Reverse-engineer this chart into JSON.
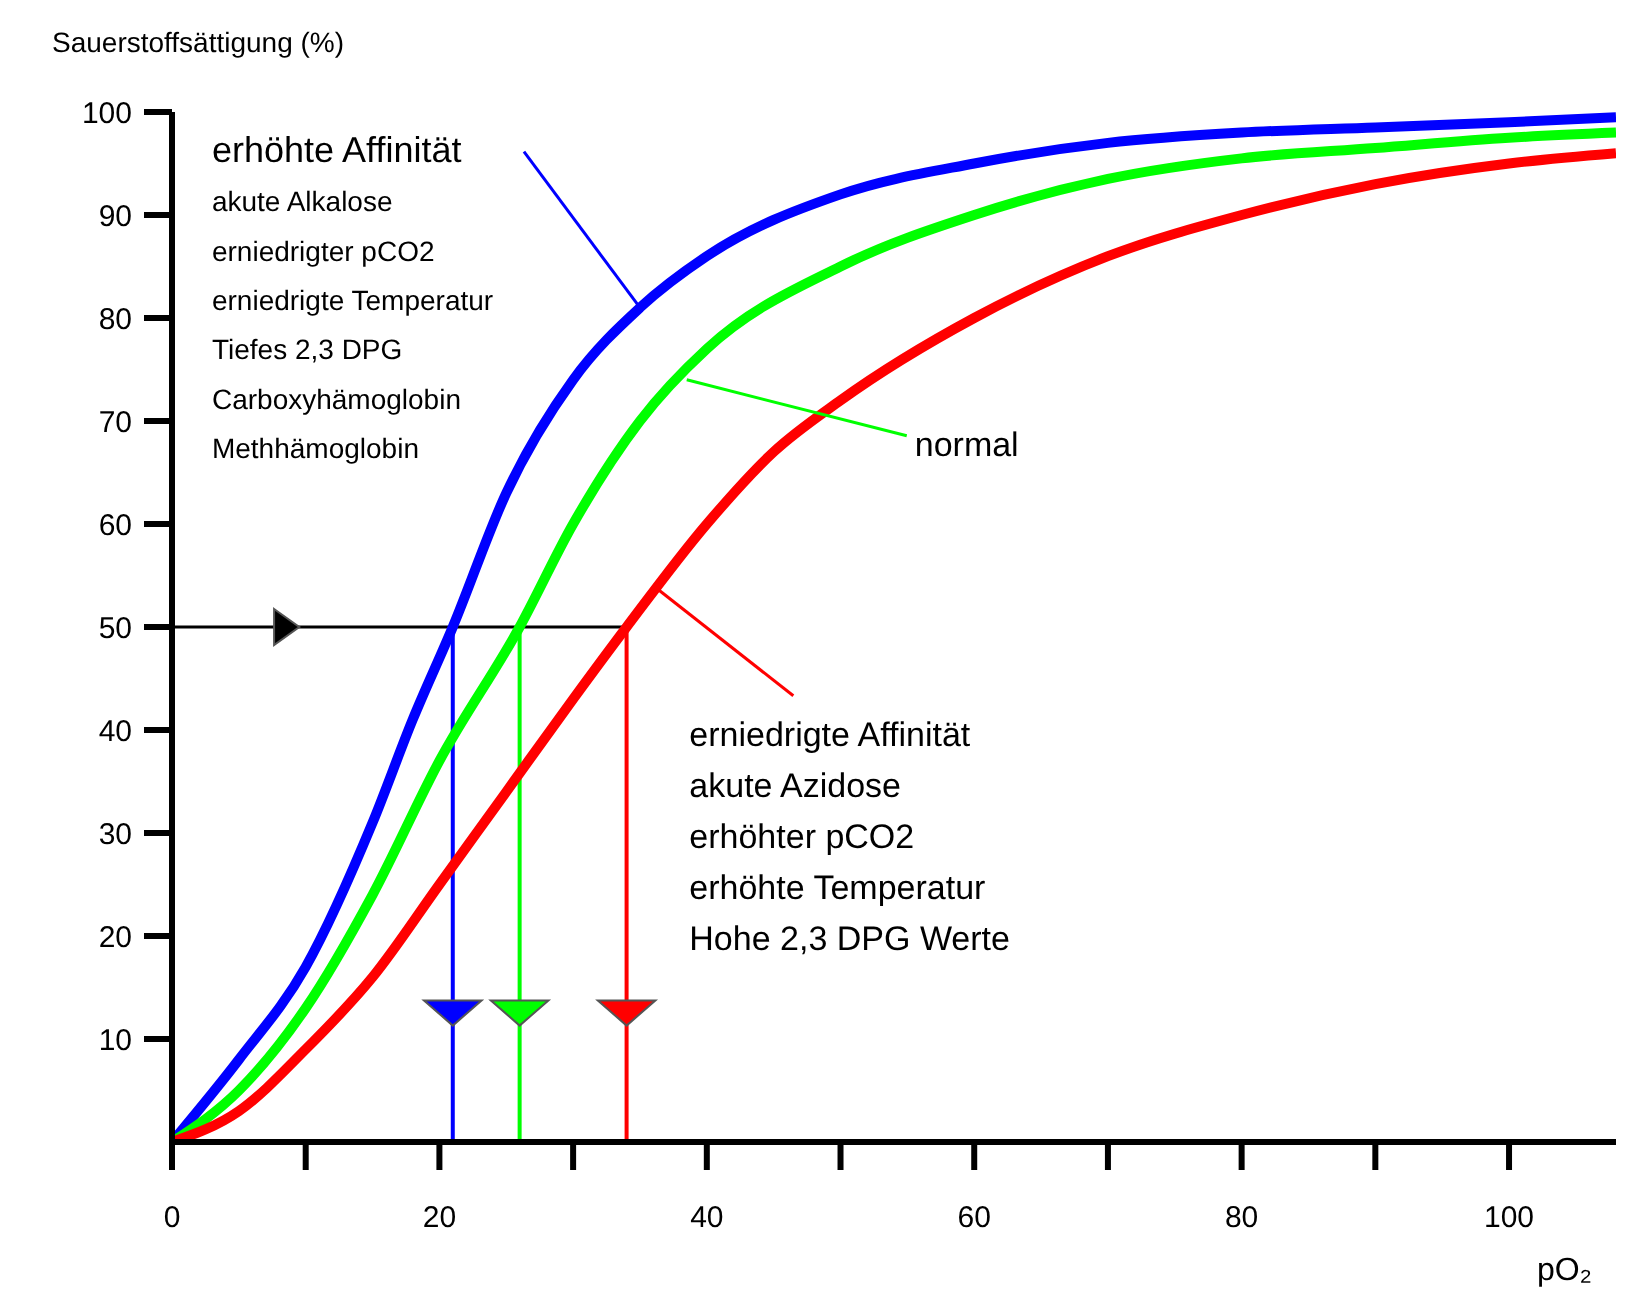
{
  "chart_data": {
    "type": "line",
    "ylabel": "Sauerstoffsättigung (%)",
    "xlabel": "pO₂",
    "xlim": [
      0,
      108
    ],
    "ylim": [
      0,
      100
    ],
    "xticks": [
      0,
      {
        "value": 10,
        "label": null
      },
      20,
      {
        "value": 30,
        "label": null
      },
      40,
      {
        "value": 50,
        "label": null
      },
      60,
      {
        "value": 70,
        "label": null
      },
      80,
      {
        "value": 90,
        "label": null
      },
      100
    ],
    "yticks": [
      10,
      20,
      30,
      40,
      50,
      60,
      70,
      80,
      90,
      100
    ],
    "marker": "none",
    "line_style": "solid",
    "series": [
      {
        "color": "#0000ff",
        "x": [
          0,
          5,
          10,
          15,
          18,
          21,
          25,
          30,
          35,
          40,
          50,
          60,
          70,
          80,
          90,
          100,
          108
        ],
        "values": [
          0,
          8,
          17,
          31,
          41,
          50,
          63,
          74,
          81,
          86,
          92,
          95,
          97,
          98,
          98.5,
          99,
          99.5
        ]
      },
      {
        "color": "#00ff00",
        "x": [
          0,
          5,
          10,
          15,
          20,
          26,
          30,
          35,
          40,
          50,
          60,
          70,
          80,
          90,
          100,
          108
        ],
        "values": [
          0,
          5,
          13,
          24,
          37,
          50,
          60,
          70,
          77,
          85,
          90,
          93.5,
          95.5,
          96.5,
          97.5,
          98
        ]
      },
      {
        "color": "#ff0000",
        "x": [
          0,
          5,
          10,
          15,
          20,
          25,
          30,
          34,
          40,
          45,
          50,
          60,
          70,
          80,
          90,
          100,
          108
        ],
        "values": [
          0,
          3,
          9,
          16,
          25,
          34,
          43,
          50,
          60,
          67,
          72,
          80,
          86,
          90,
          93,
          95,
          96
        ]
      }
    ],
    "ref_lines": [
      {
        "axis": "y",
        "value": 50,
        "color": "#000000"
      },
      {
        "axis": "x",
        "value": 21,
        "color": "#0000ff"
      },
      {
        "axis": "x",
        "value": 26,
        "color": "#00ff00"
      },
      {
        "axis": "x",
        "value": 34,
        "color": "#ff0000"
      }
    ],
    "annotations": [
      {
        "text": "erhöhte Affinität\nakute Alkalose\nerniedrigter pCO2\nerniedrigte Temperatur\nTiefes 2,3 DPG\nCarboxyhämoglobin\nMethhämoglobin",
        "x": 35,
        "y": 81
      },
      {
        "text": "normal",
        "x": 38.5,
        "y": 74
      },
      {
        "text": "erniedrigte Affinität\nakute Azidose\nerhöhter pCO2\nerhöhte Temperatur\nHohe 2,3 DPG Werte",
        "x": 36,
        "y": 54
      }
    ]
  }
}
